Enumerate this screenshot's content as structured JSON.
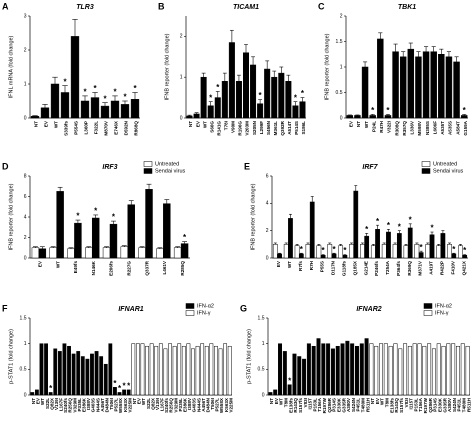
{
  "chart_data": [
    {
      "type": "bar",
      "panel": "A",
      "title": "TLR3",
      "ylabel": "IFNL mRNA (fold change)",
      "ylim": [
        0,
        3
      ],
      "yticks": [
        0,
        1,
        2,
        3
      ],
      "categories": [
        "NT",
        "EV",
        "WT",
        "S339fs",
        "P554S",
        "L360P",
        "F322L",
        "M870V",
        "E746X",
        "D592N",
        "R868Q"
      ],
      "label_colors": [
        "#000000",
        "#000000",
        "#000000",
        "#d7262b",
        "#d7262b",
        "#d7262b",
        "#d7262b",
        "#d7262b",
        "#d7262b",
        "#d7262b",
        "#2a7ab9"
      ],
      "series": [
        {
          "color": "#000000",
          "values": [
            0.05,
            0.3,
            1.0,
            0.75,
            2.4,
            0.5,
            0.6,
            0.35,
            0.5,
            0.4,
            0.55
          ],
          "errors": [
            0.02,
            0.1,
            0.2,
            0.2,
            0.5,
            0.15,
            0.15,
            0.1,
            0.15,
            0.1,
            0.2
          ],
          "markers": [
            null,
            null,
            null,
            "*",
            null,
            "*",
            "*",
            "*",
            "*",
            "*",
            "*"
          ]
        }
      ]
    },
    {
      "type": "bar",
      "panel": "B",
      "title": "TICAM1",
      "ylabel": "IFNB reporter (fold change)",
      "ylim": [
        0,
        2.5
      ],
      "yticks": [
        0,
        1,
        2
      ],
      "categories": [
        "NT",
        "EV",
        "WT",
        "S60G",
        "R141G",
        "T78I",
        "V90M",
        "R196G",
        "V203M",
        "S205N",
        "L299F",
        "S456N",
        "M361L",
        "Q392R",
        "A514T",
        "P514S",
        "S186L"
      ],
      "label_colors": [
        "#000000",
        "#000000",
        "#000000",
        "#d7262b",
        "#d7262b",
        "#d7262b",
        "#d7262b",
        "#d7262b",
        "#d7262b",
        "#d7262b",
        "#d7262b",
        "#d7262b",
        "#d7262b",
        "#d7262b",
        "#d7262b",
        "#d7262b",
        "#2a7ab9"
      ],
      "series": [
        {
          "color": "#000000",
          "values": [
            0.05,
            0.1,
            1.0,
            0.3,
            0.5,
            0.9,
            1.85,
            0.9,
            1.6,
            1.3,
            0.35,
            1.2,
            1.0,
            1.1,
            0.9,
            0.3,
            0.4
          ],
          "errors": [
            0.02,
            0.03,
            0.1,
            0.1,
            0.15,
            0.2,
            0.3,
            0.15,
            0.2,
            0.2,
            0.1,
            0.2,
            0.15,
            0.15,
            0.15,
            0.1,
            0.1
          ],
          "markers": [
            null,
            null,
            null,
            "*",
            "*",
            null,
            null,
            null,
            null,
            null,
            "*",
            null,
            null,
            null,
            null,
            "*",
            "*"
          ]
        }
      ]
    },
    {
      "type": "bar",
      "panel": "C",
      "title": "TBK1",
      "ylabel": "IFNB reporter (fold change)",
      "ylim": [
        0,
        2
      ],
      "yticks": [
        0,
        0.5,
        1,
        1.5,
        2
      ],
      "categories": [
        "EV",
        "NT",
        "WT",
        "P24L",
        "R47H",
        "V322I",
        "R308Q",
        "R357Q",
        "L336V",
        "M598V",
        "N385S",
        "L606F",
        "A535T",
        "A535S",
        "A584T",
        "G159A"
      ],
      "label_colors": [
        "#000000",
        "#000000",
        "#000000",
        "#d7262b",
        "#d7262b",
        "#d7262b",
        "#d7262b",
        "#d7262b",
        "#d7262b",
        "#d7262b",
        "#d7262b",
        "#d7262b",
        "#d7262b",
        "#d7262b",
        "#d7262b",
        "#2a7ab9"
      ],
      "series": [
        {
          "color": "#000000",
          "values": [
            0.05,
            0.05,
            1.0,
            0.05,
            1.55,
            0.05,
            1.3,
            1.2,
            1.35,
            1.2,
            1.3,
            1.3,
            1.25,
            1.2,
            1.1,
            0.05
          ],
          "errors": [
            0.01,
            0.01,
            0.1,
            0.02,
            0.12,
            0.02,
            0.15,
            0.1,
            0.12,
            0.1,
            0.1,
            0.1,
            0.1,
            0.1,
            0.1,
            0.02
          ],
          "markers": [
            null,
            null,
            null,
            "*",
            null,
            "*",
            null,
            null,
            null,
            null,
            null,
            null,
            null,
            null,
            null,
            "*"
          ]
        }
      ]
    },
    {
      "type": "bar",
      "panel": "D",
      "title": "IRF3",
      "ylabel": "IFNB reporter (fold change)",
      "ylim": [
        0,
        8
      ],
      "yticks": [
        0,
        2,
        4,
        6,
        8
      ],
      "legend": "upper right",
      "categories": [
        "EV",
        "WT",
        "E49fs",
        "N146K",
        "E206fs",
        "R227G",
        "Q337R",
        "L461V",
        "R285Q"
      ],
      "label_colors": [
        "#000000",
        "#000000",
        "#d7262b",
        "#d7262b",
        "#d7262b",
        "#d7262b",
        "#d7262b",
        "#d7262b",
        "#2a7ab9"
      ],
      "series": [
        {
          "name": "Untreated",
          "color": "#ffffff",
          "values": [
            1.0,
            1.0,
            0.9,
            1.0,
            1.0,
            1.1,
            1.0,
            0.9,
            1.0
          ],
          "errors": [
            0.1,
            0.1,
            0.1,
            0.1,
            0.1,
            0.1,
            0.1,
            0.1,
            0.1
          ],
          "markers": [
            null,
            null,
            null,
            null,
            null,
            null,
            null,
            null,
            null
          ]
        },
        {
          "name": "Sendai virus",
          "color": "#000000",
          "values": [
            0.9,
            6.5,
            3.4,
            3.9,
            3.3,
            5.2,
            6.7,
            5.3,
            1.4
          ],
          "errors": [
            0.2,
            0.4,
            0.3,
            0.3,
            0.3,
            0.4,
            0.5,
            0.4,
            0.2
          ],
          "markers": [
            null,
            null,
            "*",
            "*",
            "*",
            null,
            null,
            null,
            "*"
          ]
        }
      ]
    },
    {
      "type": "bar",
      "panel": "E",
      "title": "IRF7",
      "ylabel": "IFNB reporter (fold change)",
      "ylim": [
        0,
        6
      ],
      "yticks": [
        0,
        2,
        4,
        6
      ],
      "legend": "upper right",
      "categories": [
        "EV",
        "WT",
        "R7fs",
        "R7H",
        "P55S",
        "D117N",
        "G118fs",
        "Q185X",
        "G214E",
        "P246fs",
        "T254A",
        "P364fs",
        "R369Q",
        "M371V",
        "A419T",
        "R422P",
        "F410V",
        "Q421X"
      ],
      "label_colors": [
        "#000000",
        "#000000",
        "#d7262b",
        "#d7262b",
        "#d7262b",
        "#d7262b",
        "#d7262b",
        "#d7262b",
        "#d7262b",
        "#d7262b",
        "#d7262b",
        "#d7262b",
        "#d7262b",
        "#d7262b",
        "#d7262b",
        "#d7262b",
        "#2a7ab9",
        "#2a7ab9"
      ],
      "series": [
        {
          "name": "Untreated",
          "color": "#ffffff",
          "values": [
            1.0,
            1.0,
            0.9,
            1.0,
            0.9,
            1.0,
            0.9,
            1.0,
            1.0,
            0.9,
            1.0,
            1.0,
            0.9,
            1.0,
            1.0,
            0.9,
            1.0,
            0.9
          ],
          "errors": [
            0.1,
            0.1,
            0.1,
            0.1,
            0.1,
            0.1,
            0.1,
            0.1,
            0.1,
            0.1,
            0.1,
            0.1,
            0.1,
            0.1,
            0.1,
            0.1,
            0.1,
            0.1
          ],
          "markers": [
            null,
            null,
            null,
            null,
            null,
            null,
            null,
            null,
            null,
            null,
            null,
            null,
            null,
            null,
            null,
            null,
            null,
            null
          ]
        },
        {
          "name": "Sendai virus",
          "color": "#000000",
          "values": [
            0.3,
            2.9,
            0.3,
            4.1,
            0.2,
            0.3,
            0.2,
            4.9,
            1.6,
            2.1,
            1.9,
            1.8,
            2.2,
            0.4,
            1.7,
            1.8,
            0.3,
            0.2
          ],
          "errors": [
            0.05,
            0.3,
            0.05,
            0.4,
            0.05,
            0.05,
            0.05,
            0.4,
            0.2,
            0.3,
            0.2,
            0.2,
            0.3,
            0.1,
            0.2,
            0.2,
            0.05,
            0.05
          ],
          "markers": [
            null,
            null,
            "*",
            null,
            "*",
            "*",
            "*",
            null,
            "*",
            "*",
            "*",
            "*",
            "*",
            "*",
            "*",
            null,
            "*",
            "*"
          ]
        }
      ]
    },
    {
      "type": "bar",
      "panel": "F",
      "title": "IFNAR1",
      "ylabel": "p-STAT1 (fold change)",
      "ylim": [
        0,
        1.5
      ],
      "yticks": [
        0,
        0.5,
        1,
        1.5
      ],
      "legend": "upper right",
      "bar_layout": "sequential",
      "categories": [
        "NT",
        "EV",
        "WT",
        "S22L",
        "Q82X",
        "V139I",
        "L167F",
        "S240fs",
        "R256Q",
        "V329M",
        "P335L",
        "E386K",
        "I388V",
        "G403S",
        "N444S",
        "A456T",
        "D484N",
        "T506I",
        "P527L",
        "W558X",
        "K563X",
        "V225M"
      ],
      "label_colors": [
        "#000000",
        "#000000",
        "#000000",
        "#d7262b",
        "#d7262b",
        "#d7262b",
        "#d7262b",
        "#d7262b",
        "#d7262b",
        "#d7262b",
        "#d7262b",
        "#d7262b",
        "#d7262b",
        "#d7262b",
        "#d7262b",
        "#d7262b",
        "#d7262b",
        "#d7262b",
        "#d7262b",
        "#d7262b",
        "#d7262b",
        "#2a7ab9"
      ],
      "series": [
        {
          "name": "IFN-α2",
          "color": "#000000",
          "values": [
            0.05,
            0.1,
            1.0,
            1.0,
            0.05,
            0.9,
            0.85,
            1.0,
            0.95,
            0.8,
            0.85,
            0.75,
            0.7,
            0.8,
            0.85,
            0.75,
            0.6,
            1.0,
            0.15,
            0.05,
            0.1,
            0.1
          ],
          "markers": [
            null,
            null,
            null,
            null,
            "*",
            null,
            null,
            null,
            null,
            null,
            null,
            null,
            null,
            null,
            null,
            null,
            null,
            null,
            "*",
            "*",
            "*",
            "*"
          ]
        },
        {
          "name": "IFN-γ",
          "color": "#ffffff",
          "values": [
            1.0,
            1.0,
            1.0,
            0.95,
            1.0,
            0.95,
            1.0,
            0.9,
            1.0,
            0.95,
            1.0,
            0.95,
            1.0,
            0.9,
            0.95,
            1.0,
            0.95,
            1.0,
            0.95,
            0.9,
            1.0,
            0.95
          ]
        }
      ]
    },
    {
      "type": "bar",
      "panel": "G",
      "title": "IFNAR2",
      "ylabel": "p-STAT1 (fold change)",
      "ylim": [
        0,
        1.5
      ],
      "yticks": [
        0,
        0.5,
        1,
        1.5
      ],
      "legend": "upper right",
      "bar_layout": "sequential",
      "categories": [
        "NT",
        "EV",
        "WT",
        "T8M",
        "E138fs",
        "R143Q",
        "S157fs",
        "V83I",
        "I115T",
        "P153L",
        "T156A",
        "R197W",
        "Q286R",
        "P314S",
        "E330K",
        "G335R",
        "A380V",
        "S424N",
        "P451L",
        "T480M",
        "R511H"
      ],
      "label_colors": [
        "#000000",
        "#000000",
        "#000000",
        "#d7262b",
        "#d7262b",
        "#d7262b",
        "#d7262b",
        "#d7262b",
        "#d7262b",
        "#d7262b",
        "#d7262b",
        "#d7262b",
        "#d7262b",
        "#d7262b",
        "#d7262b",
        "#d7262b",
        "#d7262b",
        "#d7262b",
        "#d7262b",
        "#d7262b",
        "#d7262b"
      ],
      "series": [
        {
          "name": "IFN-α2",
          "color": "#000000",
          "values": [
            0.05,
            0.1,
            1.0,
            0.85,
            0.2,
            0.8,
            0.75,
            0.7,
            1.0,
            0.95,
            1.1,
            1.0,
            1.0,
            0.9,
            0.95,
            1.0,
            1.05,
            1.0,
            0.95,
            1.0,
            1.1
          ],
          "markers": [
            null,
            null,
            null,
            null,
            "*",
            null,
            null,
            null,
            null,
            null,
            null,
            null,
            null,
            null,
            null,
            null,
            null,
            null,
            null,
            null,
            null
          ]
        },
        {
          "name": "IFN-γ",
          "color": "#ffffff",
          "values": [
            1.0,
            0.95,
            1.0,
            1.0,
            0.95,
            1.0,
            0.9,
            1.0,
            0.95,
            1.0,
            1.0,
            0.95,
            1.0,
            0.9,
            1.0,
            0.95,
            1.0,
            1.0,
            0.95,
            1.0,
            0.95
          ]
        }
      ]
    }
  ]
}
